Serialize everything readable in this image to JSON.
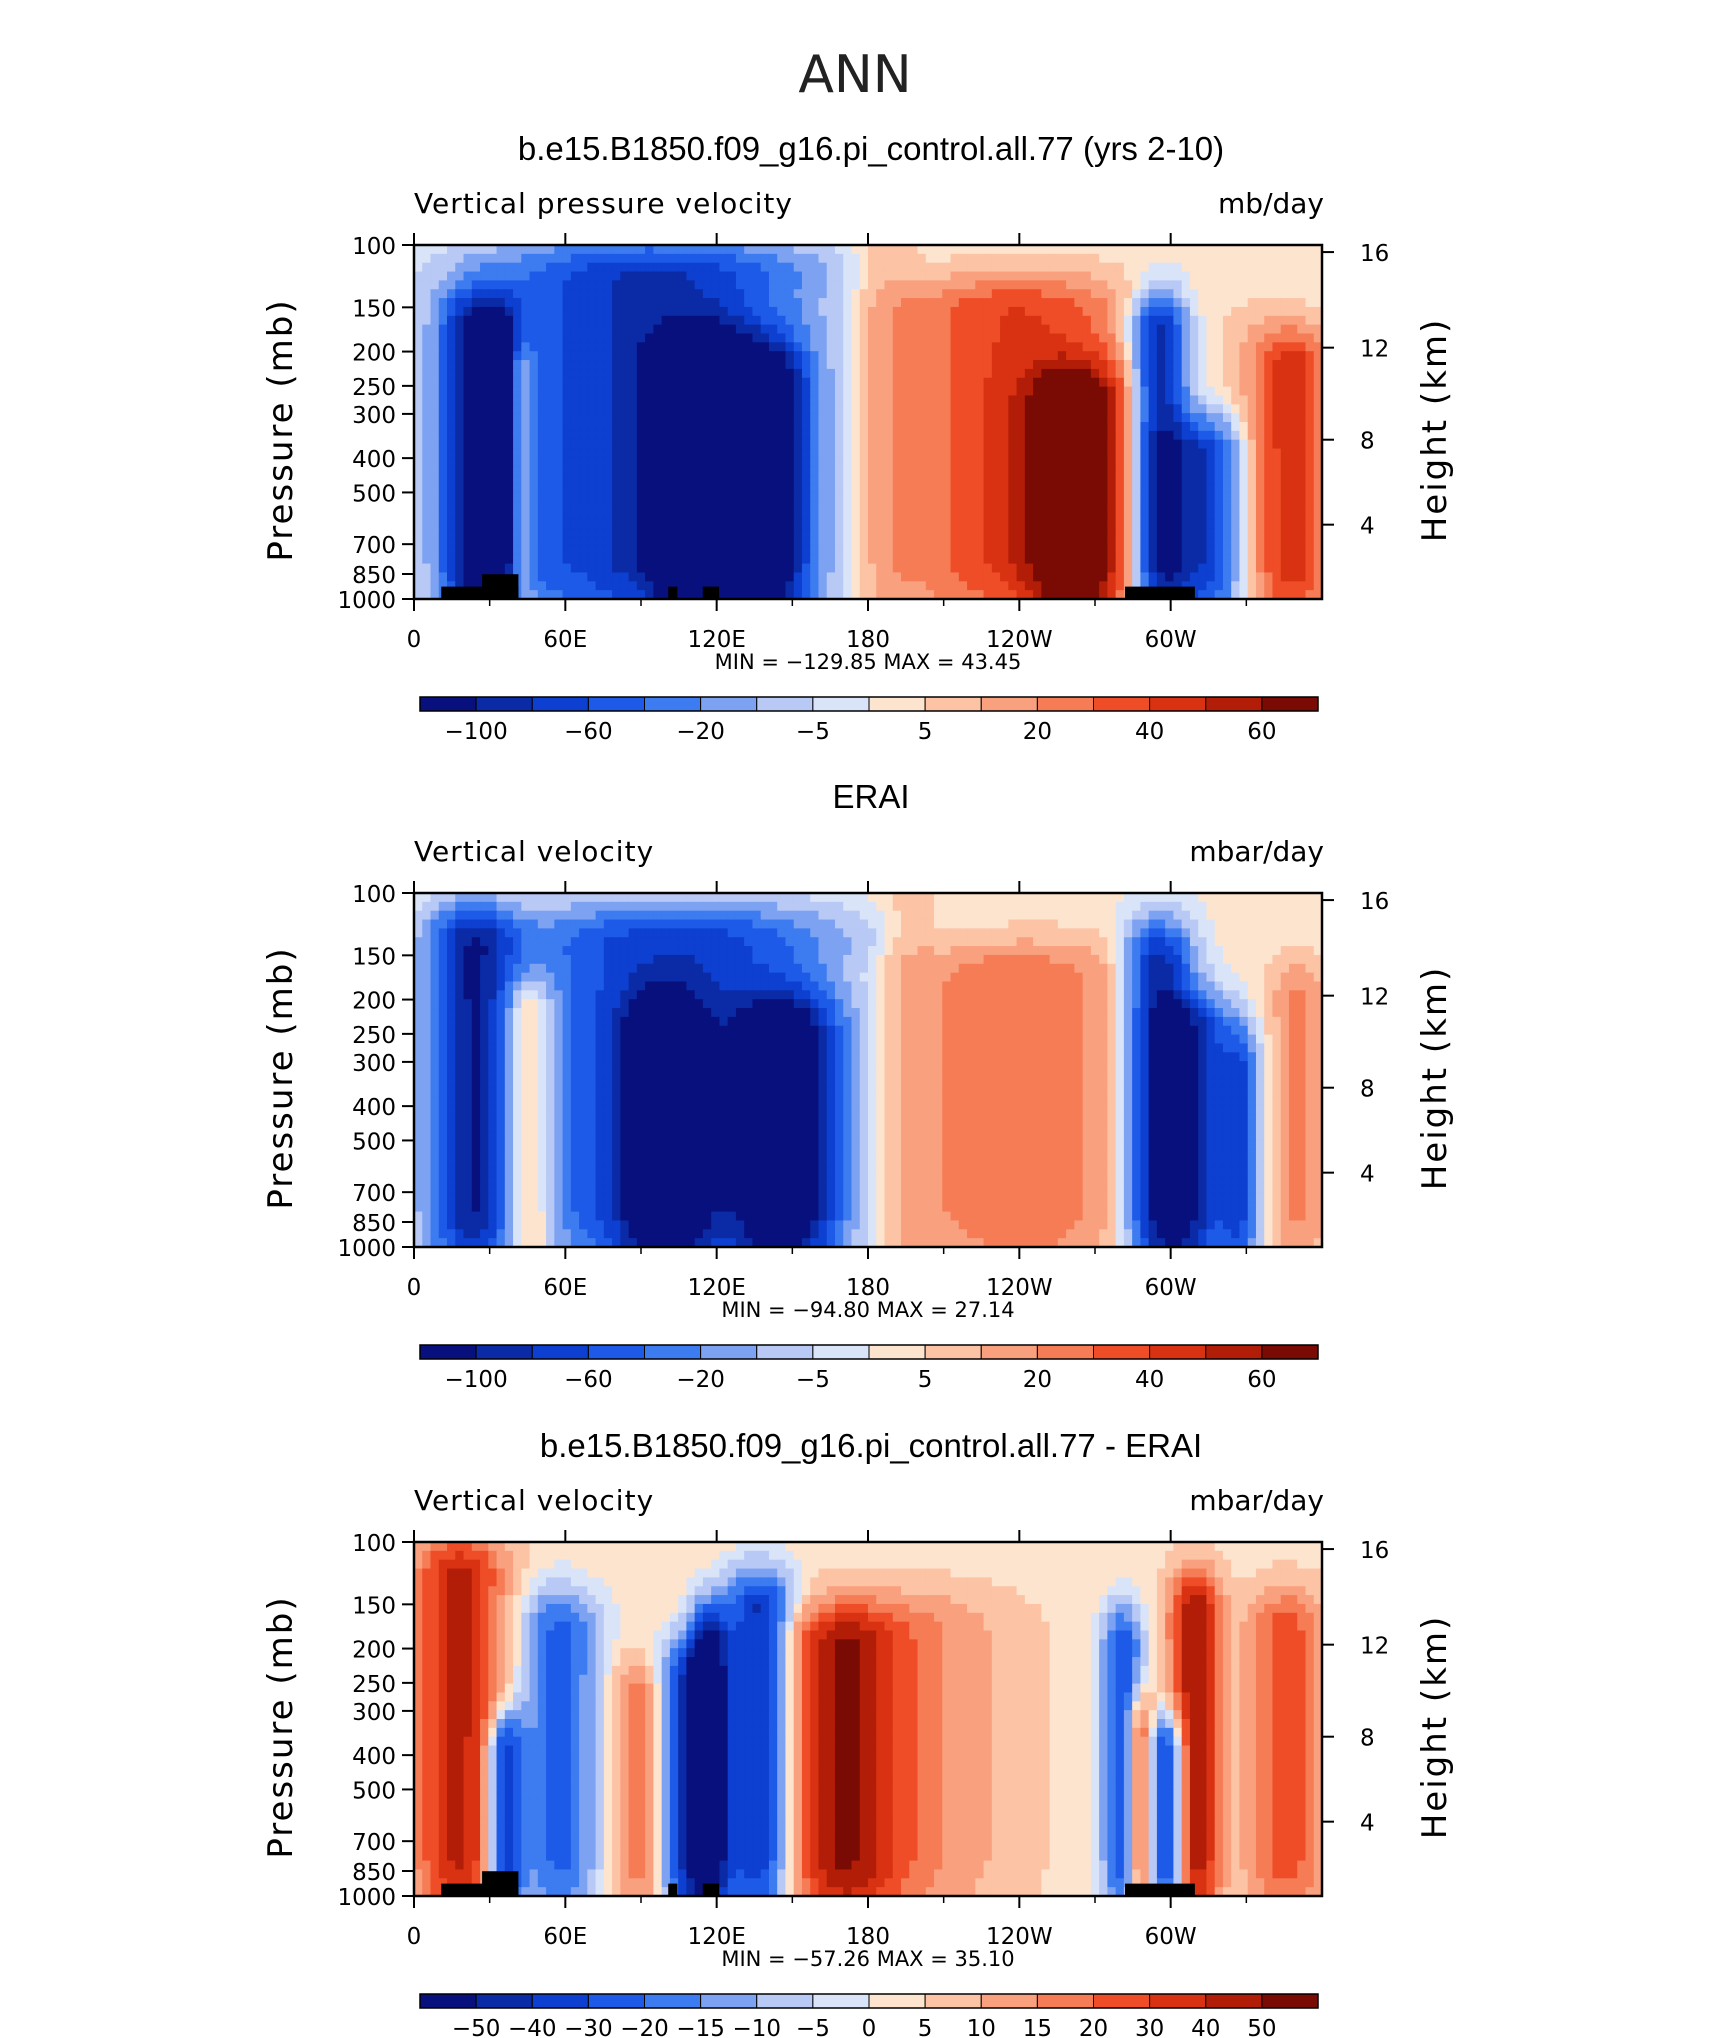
{
  "page_title": "ANN",
  "colors": {
    "diverging_panels_1_2": [
      "#08107e",
      "#0a2aa6",
      "#0d3fd0",
      "#1d5ae8",
      "#3d7bf0",
      "#7da2f2",
      "#b8c9f6",
      "#d9e4f8",
      "#fde4cf",
      "#fcc3a5",
      "#f9a07e",
      "#f57c55",
      "#ef4d28",
      "#d93212",
      "#b21d08",
      "#7a0a04"
    ],
    "diverging_panel_3": [
      "#08107e",
      "#0a2aa6",
      "#0d3fd0",
      "#1d5ae8",
      "#3d7bf0",
      "#7da2f2",
      "#b8c9f6",
      "#d9e4f8",
      "#fde4cf",
      "#fcc3a5",
      "#f9a07e",
      "#f57c55",
      "#ef4d28",
      "#d93212",
      "#b21d08",
      "#7a0a04"
    ]
  },
  "chart_data": [
    {
      "type": "heatmap",
      "title": "b.e15.B1850.f09_g16.pi_control.all.77 (yrs 2-10)",
      "left_label": "Vertical pressure velocity",
      "units": "mb/day",
      "ylabel": "Pressure (mb)",
      "ylabel_right": "Height (km)",
      "y_ticks": [
        "100",
        "150",
        "200",
        "250",
        "300",
        "400",
        "500",
        "700",
        "850",
        "1000"
      ],
      "y_ticks_right": [
        "16",
        "12",
        "8",
        "4"
      ],
      "x_ticks": [
        "0",
        "60E",
        "120E",
        "180",
        "120W",
        "60W"
      ],
      "minmax": "MIN = −129.85   MAX =   43.45",
      "colorbar_labels": [
        "−100",
        "−60",
        "−20",
        "−5",
        "5",
        "20",
        "40",
        "60"
      ],
      "grid": false
    },
    {
      "type": "heatmap",
      "title": "ERAI",
      "left_label": "Vertical velocity",
      "units": "mbar/day",
      "ylabel": "Pressure (mb)",
      "ylabel_right": "Height (km)",
      "y_ticks": [
        "100",
        "150",
        "200",
        "250",
        "300",
        "400",
        "500",
        "700",
        "850",
        "1000"
      ],
      "y_ticks_right": [
        "16",
        "12",
        "8",
        "4"
      ],
      "x_ticks": [
        "0",
        "60E",
        "120E",
        "180",
        "120W",
        "60W"
      ],
      "minmax": "MIN = −94.80   MAX =   27.14",
      "colorbar_labels": [
        "−100",
        "−60",
        "−20",
        "−5",
        "5",
        "20",
        "40",
        "60"
      ],
      "grid": false
    },
    {
      "type": "heatmap",
      "title": "b.e15.B1850.f09_g16.pi_control.all.77 - ERAI",
      "left_label": "Vertical velocity",
      "units": "mbar/day",
      "ylabel": "Pressure (mb)",
      "ylabel_right": "Height (km)",
      "y_ticks": [
        "100",
        "150",
        "200",
        "250",
        "300",
        "400",
        "500",
        "700",
        "850",
        "1000"
      ],
      "y_ticks_right": [
        "16",
        "12",
        "8",
        "4"
      ],
      "x_ticks": [
        "0",
        "60E",
        "120E",
        "180",
        "120W",
        "60W"
      ],
      "minmax": "MIN = −57.26   MAX =   35.10",
      "colorbar_labels": [
        "−50",
        "−40",
        "−30",
        "−20",
        "−15",
        "−10",
        "−5",
        "0",
        "5",
        "10",
        "15",
        "20",
        "30",
        "40",
        "50"
      ],
      "grid": false
    }
  ]
}
